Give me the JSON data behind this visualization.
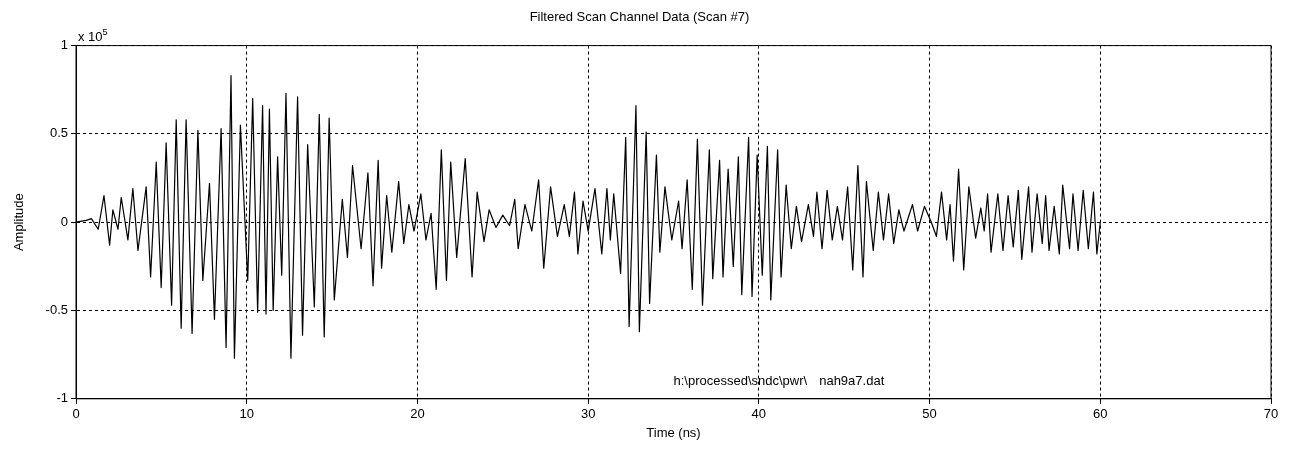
{
  "chart_data": {
    "type": "line",
    "title": "Filtered Scan Channel Data (Scan #7)",
    "xlabel": "Time (ns)",
    "ylabel": "Amplitude",
    "annotations": [
      "x 10$^{5}$",
      "h:\\processed\\sndc\\pwr\\",
      "nah9a7.dat"
    ],
    "xlim": [
      0,
      70
    ],
    "xticks": [
      0,
      10,
      20,
      30,
      40,
      50,
      60,
      70
    ],
    "ylim": [
      -1,
      1
    ],
    "yticks": [
      -1,
      -0.5,
      0,
      0.5,
      1
    ],
    "grid": true,
    "legend": false,
    "marker": "none",
    "line_style": "solid",
    "series": [
      {
        "color": "#000000",
        "x": [
          0,
          0.6,
          0.9,
          1.3,
          1.64,
          1.97,
          2.16,
          2.46,
          2.65,
          3.04,
          3.33,
          3.63,
          4.11,
          4.37,
          4.7,
          4.99,
          5.28,
          5.6,
          5.87,
          6.16,
          6.45,
          6.8,
          7.14,
          7.43,
          7.82,
          8.11,
          8.5,
          8.79,
          9.08,
          9.28,
          9.63,
          10.06,
          10.35,
          10.64,
          10.93,
          11.13,
          11.33,
          11.55,
          11.81,
          12.05,
          12.3,
          12.59,
          12.98,
          13.27,
          13.57,
          13.96,
          14.25,
          14.54,
          14.83,
          15.13,
          15.6,
          15.9,
          16.2,
          16.7,
          17.1,
          17.4,
          17.7,
          17.9,
          18.2,
          18.5,
          18.9,
          19.2,
          19.5,
          19.8,
          20.2,
          20.5,
          20.8,
          21.1,
          21.4,
          21.7,
          21.95,
          22.3,
          22.8,
          23.2,
          23.5,
          23.9,
          24.2,
          24.6,
          25,
          25.4,
          25.7,
          25.9,
          26.3,
          26.7,
          27.1,
          27.4,
          27.8,
          28.2,
          28.6,
          28.9,
          29.2,
          29.4,
          29.7,
          30,
          30.4,
          30.8,
          31.1,
          31.3,
          31.5,
          31.9,
          32.2,
          32.4,
          32.8,
          33,
          33.4,
          33.6,
          34,
          34.2,
          34.5,
          34.9,
          35.3,
          35.5,
          35.8,
          36.1,
          36.4,
          36.7,
          37.1,
          37.3,
          37.7,
          37.9,
          38.2,
          38.5,
          38.8,
          39,
          39.4,
          39.6,
          39.9,
          40.2,
          40.5,
          40.7,
          41.1,
          41.3,
          41.6,
          41.9,
          42.2,
          42.5,
          42.9,
          43.2,
          43.4,
          43.7,
          44,
          44.3,
          44.6,
          44.9,
          45.2,
          45.5,
          45.8,
          46.1,
          46.3,
          46.7,
          47,
          47.3,
          47.6,
          47.9,
          48.2,
          48.5,
          49,
          49.3,
          49.7,
          50.1,
          50.4,
          50.7,
          51,
          51.2,
          51.4,
          51.7,
          52,
          52.3,
          52.7,
          53,
          53.2,
          53.4,
          53.6,
          54,
          54.3,
          54.6,
          54.9,
          55.2,
          55.4,
          55.8,
          56,
          56.3,
          56.6,
          56.8,
          57,
          57.3,
          57.6,
          57.8,
          58.2,
          58.4,
          58.7,
          59,
          59.3,
          59.6,
          59.8,
          60
        ],
        "values": [
          0,
          0.01,
          0.02,
          -0.04,
          0.15,
          -0.13,
          0.07,
          -0.04,
          0.14,
          -0.1,
          0.19,
          -0.16,
          0.2,
          -0.31,
          0.34,
          -0.37,
          0.45,
          -0.47,
          0.58,
          -0.6,
          0.58,
          -0.63,
          0.52,
          -0.33,
          0.22,
          -0.55,
          0.53,
          -0.71,
          0.83,
          -0.77,
          0.55,
          -0.33,
          0.7,
          -0.51,
          0.66,
          -0.52,
          0.64,
          -0.5,
          0.37,
          -0.3,
          0.73,
          -0.77,
          0.71,
          -0.64,
          0.44,
          -0.48,
          0.61,
          -0.65,
          0.59,
          -0.44,
          0.13,
          -0.2,
          0.32,
          -0.15,
          0.28,
          -0.36,
          0.35,
          -0.26,
          0.15,
          -0.17,
          0.23,
          -0.12,
          0.1,
          -0.05,
          0.16,
          -0.1,
          0.05,
          -0.38,
          0.41,
          -0.33,
          0.34,
          -0.2,
          0.36,
          -0.31,
          0.17,
          -0.11,
          0.07,
          -0.03,
          0.04,
          -0.02,
          0.13,
          -0.15,
          0.1,
          -0.05,
          0.24,
          -0.26,
          0.2,
          -0.08,
          0.1,
          -0.08,
          0.17,
          -0.18,
          0.12,
          -0.05,
          0.19,
          -0.18,
          0.19,
          -0.1,
          0.16,
          -0.29,
          0.48,
          -0.59,
          0.66,
          -0.62,
          0.51,
          -0.46,
          0.38,
          -0.17,
          0.2,
          -0.1,
          0.12,
          -0.15,
          0.24,
          -0.38,
          0.47,
          -0.47,
          0.41,
          -0.32,
          0.35,
          -0.31,
          0.3,
          -0.25,
          0.37,
          -0.41,
          0.48,
          -0.42,
          0.38,
          -0.3,
          0.43,
          -0.44,
          0.41,
          -0.31,
          0.21,
          -0.15,
          0.09,
          -0.11,
          0.1,
          -0.08,
          0.17,
          -0.15,
          0.18,
          -0.1,
          0.09,
          -0.1,
          0.2,
          -0.27,
          0.32,
          -0.31,
          0.23,
          -0.16,
          0.17,
          -0.1,
          0.16,
          -0.12,
          0.07,
          -0.05,
          0.1,
          -0.05,
          0.09,
          0,
          -0.08,
          0.17,
          -0.1,
          0.1,
          -0.22,
          0.3,
          -0.27,
          0.2,
          -0.09,
          0.08,
          -0.05,
          0.16,
          -0.17,
          0.16,
          -0.16,
          0.15,
          -0.14,
          0.18,
          -0.21,
          0.2,
          -0.17,
          0.16,
          -0.12,
          0.15,
          -0.16,
          0.09,
          -0.18,
          0.21,
          -0.15,
          0.16,
          -0.16,
          0.18,
          -0.15,
          0.17,
          -0.18,
          0
        ]
      }
    ]
  }
}
